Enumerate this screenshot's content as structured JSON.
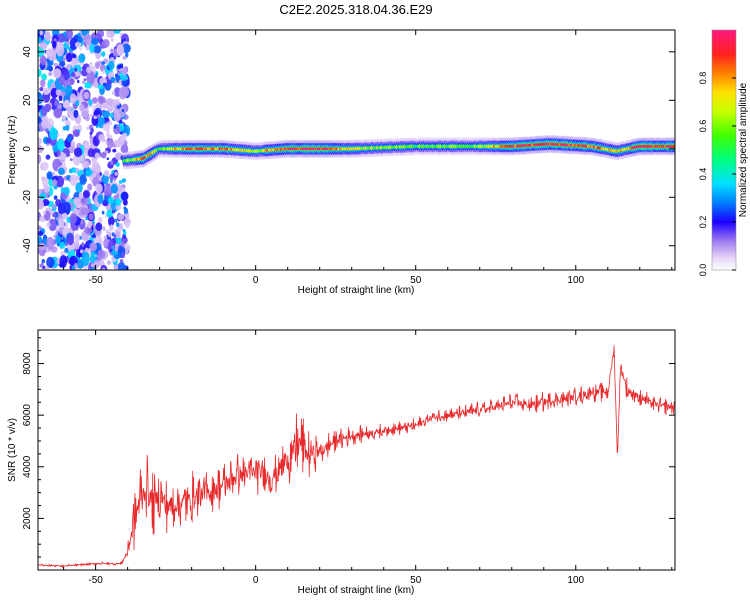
{
  "figure_title": "C2E2.2025.318.04.36.E29",
  "colors": {
    "snr_line": "#e8282a",
    "axis": "#000000",
    "background": "#ffffff"
  },
  "chart_data": [
    {
      "type": "heatmap",
      "title": "C2E2.2025.318.04.36.E29",
      "xlabel": "Height of straight line (km)",
      "ylabel": "Frequency (Hz)",
      "xlim": [
        -68,
        131
      ],
      "ylim": [
        -50,
        49
      ],
      "x_ticks": [
        -50,
        0,
        50,
        100
      ],
      "x_tick_labels": [
        "-50",
        "0",
        "50",
        "100"
      ],
      "y_ticks": [
        -40,
        -20,
        0,
        20,
        40
      ],
      "y_tick_labels": [
        "-40",
        "-20",
        "0",
        "20",
        "40"
      ],
      "colorbar": {
        "label": "Normalized spectral amplitude",
        "range": [
          0,
          1
        ],
        "ticks": [
          0,
          0.2,
          0.4,
          0.6,
          0.8
        ],
        "tick_labels": [
          "0.0",
          "0.2",
          "0.4",
          "0.6",
          "0.8"
        ]
      },
      "noise_region_km": [
        -68,
        -41
      ],
      "ridge": {
        "description_points": [
          {
            "x": -41,
            "freq": -5,
            "amp": 0.5
          },
          {
            "x": -35,
            "freq": -4,
            "amp": 0.85
          },
          {
            "x": -30,
            "freq": 0,
            "amp": 0.6
          },
          {
            "x": -20,
            "freq": 0,
            "amp": 0.85
          },
          {
            "x": -10,
            "freq": 0,
            "amp": 0.85
          },
          {
            "x": 0,
            "freq": -1,
            "amp": 0.6
          },
          {
            "x": 10,
            "freq": 0,
            "amp": 0.95
          },
          {
            "x": 20,
            "freq": 0,
            "amp": 0.95
          },
          {
            "x": 30,
            "freq": 0,
            "amp": 0.7
          },
          {
            "x": 50,
            "freq": 1,
            "amp": 0.55
          },
          {
            "x": 70,
            "freq": 1,
            "amp": 0.6
          },
          {
            "x": 80,
            "freq": 1,
            "amp": 0.9
          },
          {
            "x": 92,
            "freq": 2,
            "amp": 0.95
          },
          {
            "x": 105,
            "freq": 1,
            "amp": 0.9
          },
          {
            "x": 113,
            "freq": -1,
            "amp": 0.7
          },
          {
            "x": 120,
            "freq": 1,
            "amp": 0.95
          },
          {
            "x": 131,
            "freq": 1,
            "amp": 0.95
          }
        ]
      }
    },
    {
      "type": "line",
      "xlabel": "Height of straight line (km)",
      "ylabel": "SNR (10 * v/v)",
      "xlim": [
        -68,
        131
      ],
      "ylim": [
        0,
        9300
      ],
      "x_ticks": [
        -50,
        0,
        50,
        100
      ],
      "x_tick_labels": [
        "-50",
        "0",
        "50",
        "100"
      ],
      "y_ticks": [
        2000,
        4000,
        6000,
        8000
      ],
      "y_tick_labels": [
        "2000",
        "4000",
        "6000",
        "8000"
      ],
      "series": [
        {
          "name": "SNR",
          "x": [
            -68,
            -60,
            -50,
            -42,
            -40,
            -38,
            -36,
            -34,
            -32,
            -30,
            -28,
            -25,
            -20,
            -15,
            -10,
            -5,
            0,
            5,
            10,
            14,
            16,
            20,
            25,
            30,
            35,
            40,
            45,
            50,
            55,
            60,
            65,
            70,
            75,
            80,
            85,
            90,
            95,
            100,
            105,
            110,
            112,
            113,
            114,
            116,
            118,
            120,
            125,
            131
          ],
          "y": [
            200,
            150,
            250,
            250,
            700,
            1900,
            2800,
            3200,
            2500,
            3000,
            2500,
            2500,
            2800,
            3000,
            3300,
            3700,
            3800,
            3600,
            4300,
            5000,
            4500,
            4600,
            5000,
            5200,
            5300,
            5400,
            5500,
            5600,
            5900,
            6000,
            6100,
            6200,
            6300,
            6500,
            6400,
            6500,
            6600,
            6700,
            6900,
            6900,
            8600,
            4300,
            7900,
            7000,
            6800,
            6700,
            6400,
            6300
          ],
          "amplitude": [
            60,
            60,
            70,
            80,
            300,
            1200,
            1500,
            1300,
            1400,
            1200,
            1100,
            1100,
            1100,
            1000,
            1000,
            900,
            900,
            900,
            1100,
            1500,
            1100,
            600,
            500,
            400,
            350,
            300,
            300,
            300,
            300,
            350,
            350,
            350,
            350,
            400,
            400,
            400,
            400,
            400,
            400,
            400,
            200,
            200,
            200,
            500,
            400,
            400,
            350,
            350
          ]
        }
      ]
    }
  ]
}
